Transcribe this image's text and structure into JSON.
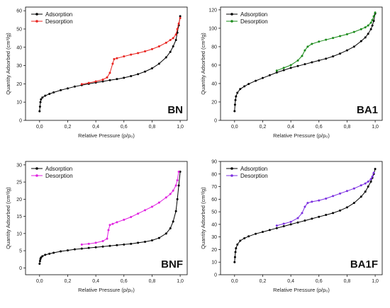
{
  "chart_data": [
    {
      "type": "line",
      "tag": "BN",
      "xlabel": "Relative Pressure (p/p₀)",
      "ylabel": "Quantity Adsorbed (cm³/g)",
      "xlim": [
        -0.1,
        1.05
      ],
      "ylim": [
        0,
        62
      ],
      "xticks": [
        0.0,
        0.2,
        0.4,
        0.6,
        0.8,
        1.0
      ],
      "xtick_labels": [
        "0,0",
        "0,2",
        "0,4",
        "0,6",
        "0,8",
        "1,0"
      ],
      "yticks": [
        0,
        10,
        20,
        30,
        40,
        50,
        60
      ],
      "ytick_labels": [
        "0",
        "10",
        "20",
        "30",
        "40",
        "50",
        "60"
      ],
      "legend_position": "top-left",
      "series": [
        {
          "name": "Adsorption",
          "color": "#000000",
          "x": [
            0.0,
            0.003,
            0.006,
            0.01,
            0.02,
            0.04,
            0.07,
            0.1,
            0.15,
            0.2,
            0.25,
            0.3,
            0.35,
            0.4,
            0.45,
            0.5,
            0.55,
            0.6,
            0.65,
            0.7,
            0.75,
            0.8,
            0.85,
            0.9,
            0.93,
            0.95,
            0.97,
            0.98,
            0.99,
            1.0
          ],
          "y": [
            5,
            7.5,
            10,
            11.5,
            12.5,
            13.5,
            14.5,
            15.3,
            16.5,
            17.5,
            18.5,
            19.3,
            20,
            20.7,
            21.3,
            22,
            22.6,
            23.3,
            24.2,
            25.3,
            26.7,
            28.5,
            31,
            34.5,
            37.5,
            40.5,
            44,
            48,
            52,
            57
          ]
        },
        {
          "name": "Desorption",
          "color": "#e8231f",
          "x": [
            1.0,
            0.99,
            0.98,
            0.97,
            0.95,
            0.93,
            0.9,
            0.85,
            0.8,
            0.75,
            0.7,
            0.65,
            0.6,
            0.55,
            0.53,
            0.52,
            0.5,
            0.48,
            0.45,
            0.4,
            0.35,
            0.3
          ],
          "y": [
            56,
            53,
            50,
            47,
            45,
            44,
            42.5,
            40.5,
            39,
            37.8,
            36.8,
            36,
            35,
            34,
            33.5,
            31,
            26,
            23.5,
            22.3,
            21.3,
            20.5,
            19.8
          ]
        }
      ]
    },
    {
      "type": "line",
      "tag": "BA1",
      "xlabel": "Relative Pressure (p/p₀)",
      "ylabel": "Quantity Adsorbed (cm³/g)",
      "xlim": [
        -0.1,
        1.05
      ],
      "ylim": [
        0,
        123
      ],
      "xticks": [
        0.0,
        0.2,
        0.4,
        0.6,
        0.8,
        1.0
      ],
      "xtick_labels": [
        "0,0",
        "0,2",
        "0,4",
        "0,6",
        "0,8",
        "1,0"
      ],
      "yticks": [
        0,
        20,
        40,
        60,
        80,
        100,
        120
      ],
      "ytick_labels": [
        "0",
        "20",
        "40",
        "60",
        "80",
        "100",
        "120"
      ],
      "legend_position": "top-left",
      "series": [
        {
          "name": "Adsorption",
          "color": "#000000",
          "x": [
            0.0,
            0.003,
            0.006,
            0.01,
            0.02,
            0.04,
            0.07,
            0.1,
            0.15,
            0.2,
            0.25,
            0.3,
            0.35,
            0.4,
            0.45,
            0.5,
            0.55,
            0.6,
            0.65,
            0.7,
            0.75,
            0.8,
            0.85,
            0.9,
            0.93,
            0.95,
            0.97,
            0.98,
            0.99,
            1.0
          ],
          "y": [
            10,
            17,
            22,
            26,
            30,
            34,
            37,
            39.5,
            43,
            46,
            49,
            52,
            54.5,
            57,
            59,
            61,
            63,
            65,
            67,
            69.5,
            72.5,
            76,
            80,
            86,
            90,
            94,
            99,
            103,
            108,
            116
          ]
        },
        {
          "name": "Desorption",
          "color": "#1a8a1a",
          "x": [
            1.0,
            0.99,
            0.98,
            0.97,
            0.95,
            0.93,
            0.9,
            0.85,
            0.8,
            0.75,
            0.7,
            0.65,
            0.6,
            0.55,
            0.52,
            0.5,
            0.48,
            0.45,
            0.4,
            0.35,
            0.3
          ],
          "y": [
            117,
            113,
            109,
            106,
            103,
            101,
            99,
            96,
            93.5,
            91.5,
            89.5,
            87.5,
            85.5,
            83,
            80,
            76,
            70,
            65,
            60,
            57,
            54
          ]
        }
      ]
    },
    {
      "type": "line",
      "tag": "BNF",
      "xlabel": "Relative Pressure (p/p₀)",
      "ylabel": "Quantity Adsorbed (cm³/g)",
      "xlim": [
        -0.1,
        1.05
      ],
      "ylim": [
        -2,
        31
      ],
      "xticks": [
        0.0,
        0.2,
        0.4,
        0.6,
        0.8,
        1.0
      ],
      "xtick_labels": [
        "0,0",
        "0,2",
        "0,4",
        "0,6",
        "0,8",
        "1,0"
      ],
      "yticks": [
        0,
        5,
        10,
        15,
        20,
        25,
        30
      ],
      "ytick_labels": [
        "0",
        "5",
        "10",
        "15",
        "20",
        "25",
        "30"
      ],
      "legend_position": "top-left",
      "series": [
        {
          "name": "Adsorption",
          "color": "#000000",
          "x": [
            0.0,
            0.003,
            0.006,
            0.01,
            0.02,
            0.04,
            0.07,
            0.1,
            0.15,
            0.2,
            0.25,
            0.3,
            0.35,
            0.4,
            0.45,
            0.5,
            0.55,
            0.6,
            0.65,
            0.7,
            0.75,
            0.8,
            0.85,
            0.9,
            0.93,
            0.95,
            0.97,
            0.98,
            0.99,
            1.0
          ],
          "y": [
            1.2,
            2,
            2.6,
            3,
            3.4,
            3.8,
            4.1,
            4.4,
            4.8,
            5.1,
            5.4,
            5.6,
            5.8,
            6,
            6.2,
            6.4,
            6.6,
            6.8,
            7,
            7.3,
            7.6,
            8,
            8.7,
            10,
            11.5,
            13.5,
            16.5,
            20,
            24,
            28
          ]
        },
        {
          "name": "Desorption",
          "color": "#e022e0",
          "x": [
            0.99,
            0.98,
            0.97,
            0.95,
            0.93,
            0.9,
            0.85,
            0.8,
            0.75,
            0.7,
            0.65,
            0.6,
            0.55,
            0.52,
            0.5,
            0.49,
            0.48,
            0.45,
            0.4,
            0.35,
            0.3
          ],
          "y": [
            28,
            25.5,
            24,
            22.5,
            21.5,
            20.5,
            19,
            17.8,
            16.8,
            15.8,
            14.8,
            14,
            13.3,
            12.8,
            12.5,
            11,
            8.5,
            7.8,
            7.3,
            7,
            6.8
          ]
        }
      ]
    },
    {
      "type": "line",
      "tag": "BA1F",
      "xlabel": "Relative Pressure (p/p₀)",
      "ylabel": "Quantity Adsorbed (cm³/g)",
      "xlim": [
        -0.1,
        1.05
      ],
      "ylim": [
        0,
        90
      ],
      "xticks": [
        0.0,
        0.2,
        0.4,
        0.6,
        0.8,
        1.0
      ],
      "xtick_labels": [
        "0,0",
        "0,2",
        "0,4",
        "0,6",
        "0,8",
        "1,0"
      ],
      "yticks": [
        0,
        10,
        20,
        30,
        40,
        50,
        60,
        70,
        80,
        90
      ],
      "ytick_labels": [
        "0",
        "10",
        "20",
        "30",
        "40",
        "50",
        "60",
        "70",
        "80",
        "90"
      ],
      "legend_position": "top-left",
      "series": [
        {
          "name": "Adsorption",
          "color": "#000000",
          "x": [
            0.0,
            0.003,
            0.006,
            0.01,
            0.02,
            0.04,
            0.07,
            0.1,
            0.15,
            0.2,
            0.25,
            0.3,
            0.35,
            0.4,
            0.45,
            0.5,
            0.55,
            0.6,
            0.65,
            0.7,
            0.75,
            0.8,
            0.85,
            0.9,
            0.93,
            0.95,
            0.97,
            0.98,
            0.99,
            1.0
          ],
          "y": [
            10,
            14,
            18,
            21,
            24,
            27,
            29,
            30.5,
            32.5,
            34,
            35.5,
            37,
            38.5,
            40,
            41.5,
            43,
            44.5,
            46,
            47.5,
            49,
            51,
            53.5,
            57,
            62,
            66,
            70,
            74,
            77,
            80,
            84
          ]
        },
        {
          "name": "Desorption",
          "color": "#7b2fe0",
          "x": [
            0.99,
            0.98,
            0.97,
            0.95,
            0.93,
            0.9,
            0.85,
            0.8,
            0.75,
            0.7,
            0.65,
            0.6,
            0.55,
            0.52,
            0.5,
            0.48,
            0.45,
            0.4,
            0.35,
            0.3
          ],
          "y": [
            81,
            78,
            76,
            74,
            72.5,
            71,
            68.5,
            66.5,
            64.5,
            62.5,
            60.5,
            59,
            58,
            57,
            54,
            49,
            45,
            42,
            40.5,
            39
          ]
        }
      ]
    }
  ]
}
